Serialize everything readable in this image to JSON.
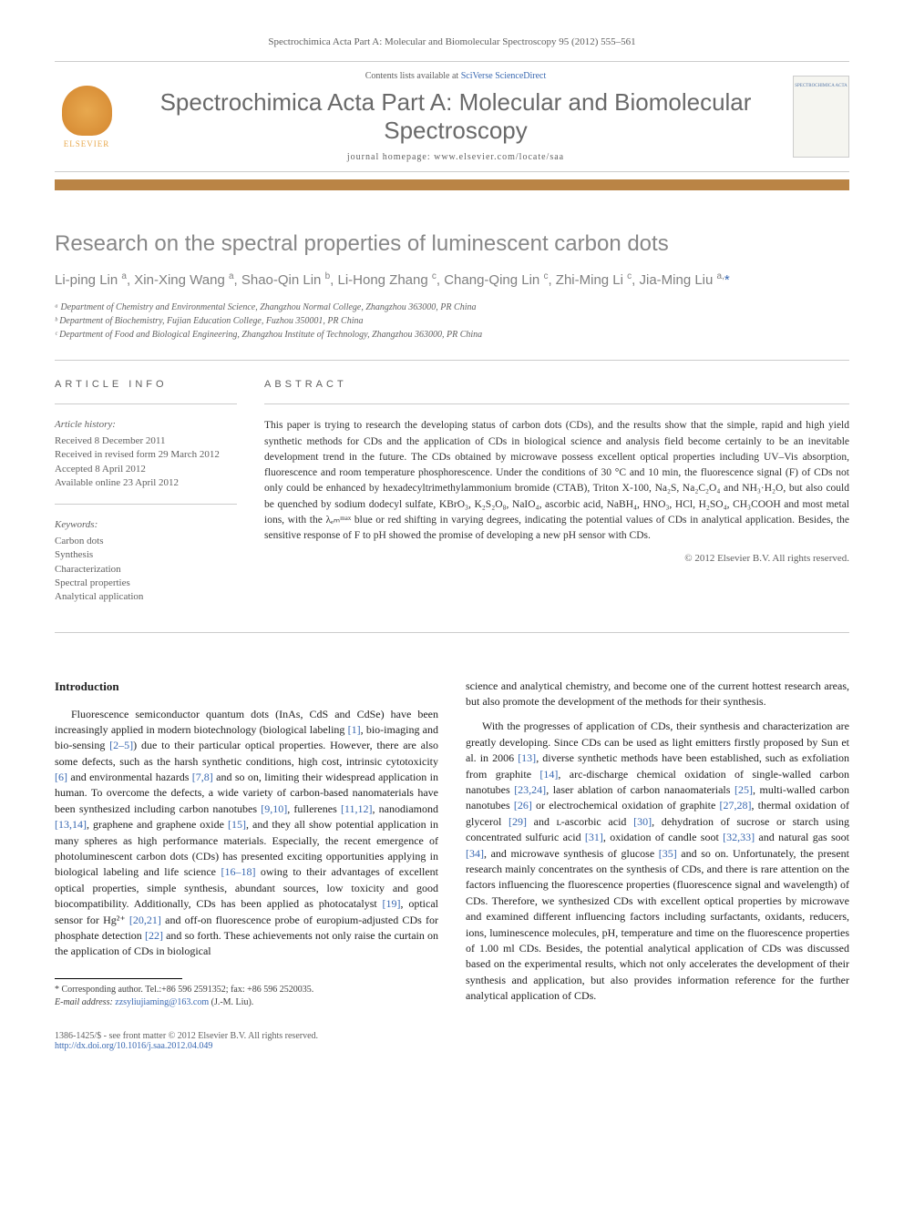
{
  "header": {
    "citation": "Spectrochimica Acta Part A: Molecular and Biomolecular Spectroscopy 95 (2012) 555–561",
    "contents_prefix": "Contents lists available at ",
    "contents_link": "SciVerse ScienceDirect",
    "journal_name": "Spectrochimica Acta Part A: Molecular and Biomolecular Spectroscopy",
    "homepage_prefix": "journal homepage: ",
    "homepage": "www.elsevier.com/locate/saa",
    "elsevier_label": "ELSEVIER",
    "cover_text": "SPECTROCHIMICA ACTA"
  },
  "article": {
    "title": "Research on the spectral properties of luminescent carbon dots",
    "authors_html": "Li-ping Lin <sup>a</sup>, Xin-Xing Wang <sup>a</sup>, Shao-Qin Lin <sup>b</sup>, Li-Hong Zhang <sup>c</sup>, Chang-Qing Lin <sup>c</sup>, Zhi-Ming Li <sup>c</sup>, Jia-Ming Liu <sup>a,</sup>",
    "affiliations": [
      "ᵃ Department of Chemistry and Environmental Science, Zhangzhou Normal College, Zhangzhou 363000, PR China",
      "ᵇ Department of Biochemistry, Fujian Education College, Fuzhou 350001, PR China",
      "ᶜ Department of Food and Biological Engineering, Zhangzhou Institute of Technology, Zhangzhou 363000, PR China"
    ]
  },
  "info": {
    "label": "ARTICLE INFO",
    "history_heading": "Article history:",
    "history": [
      "Received 8 December 2011",
      "Received in revised form 29 March 2012",
      "Accepted 8 April 2012",
      "Available online 23 April 2012"
    ],
    "keywords_heading": "Keywords:",
    "keywords": [
      "Carbon dots",
      "Synthesis",
      "Characterization",
      "Spectral properties",
      "Analytical application"
    ]
  },
  "abstract": {
    "label": "ABSTRACT",
    "text": "This paper is trying to research the developing status of carbon dots (CDs), and the results show that the simple, rapid and high yield synthetic methods for CDs and the application of CDs in biological science and analysis field become certainly to be an inevitable development trend in the future. The CDs obtained by microwave possess excellent optical properties including UV–Vis absorption, fluorescence and room temperature phosphorescence. Under the conditions of 30 °C and 10 min, the fluorescence signal (F) of CDs not only could be enhanced by hexadecyltrimethylammonium bromide (CTAB), Triton X-100, Na₂S, Na₂C₂O₄ and NH₃·H₂O, but also could be quenched by sodium dodecyl sulfate, KBrO₃, K₂S₂O₈, NaIO₄, ascorbic acid, NaBH₄, HNO₃, HCl, H₂SO₄, CH₃COOH and most metal ions, with the λₑₘᵐᵃˣ blue or red shifting in varying degrees, indicating the potential values of CDs in analytical application. Besides, the sensitive response of F to pH showed the promise of developing a new pH sensor with CDs.",
    "copyright": "© 2012 Elsevier B.V. All rights reserved."
  },
  "body": {
    "intro_heading": "Introduction",
    "left_paras": [
      "Fluorescence semiconductor quantum dots (InAs, CdS and CdSe) have been increasingly applied in modern biotechnology (biological labeling [1], bio-imaging and bio-sensing [2–5]) due to their particular optical properties. However, there are also some defects, such as the harsh synthetic conditions, high cost, intrinsic cytotoxicity [6] and environmental hazards [7,8] and so on, limiting their widespread application in human. To overcome the defects, a wide variety of carbon-based nanomaterials have been synthesized including carbon nanotubes [9,10], fullerenes [11,12], nanodiamond [13,14], graphene and graphene oxide [15], and they all show potential application in many spheres as high performance materials. Especially, the recent emergence of photoluminescent carbon dots (CDs) has presented exciting opportunities applying in biological labeling and life science [16–18] owing to their advantages of excellent optical properties, simple synthesis, abundant sources, low toxicity and good biocompatibility. Additionally, CDs has been applied as photocatalyst [19], optical sensor for Hg²⁺ [20,21] and off-on fluorescence probe of europium-adjusted CDs for phosphate detection [22] and so forth. These achievements not only raise the curtain on the application of CDs in biological"
    ],
    "right_paras": [
      "science and analytical chemistry, and become one of the current hottest research areas, but also promote the development of the methods for their synthesis.",
      "With the progresses of application of CDs, their synthesis and characterization are greatly developing. Since CDs can be used as light emitters firstly proposed by Sun et al. in 2006 [13], diverse synthetic methods have been established, such as exfoliation from graphite [14], arc-discharge chemical oxidation of single-walled carbon nanotubes [23,24], laser ablation of carbon nanaomaterials [25], multi-walled carbon nanotubes [26] or electrochemical oxidation of graphite [27,28], thermal oxidation of glycerol [29] and ʟ-ascorbic acid [30], dehydration of sucrose or starch using concentrated sulfuric acid [31], oxidation of candle soot [32,33] and natural gas soot [34], and microwave synthesis of glucose [35] and so on. Unfortunately, the present research mainly concentrates on the synthesis of CDs, and there is rare attention on the factors influencing the fluorescence properties (fluorescence signal and wavelength) of CDs. Therefore, we synthesized CDs with excellent optical properties by microwave and examined different influencing factors including surfactants, oxidants, reducers, ions, luminescence molecules, pH, temperature and time on the fluorescence properties of 1.00 ml CDs. Besides, the potential analytical application of CDs was discussed based on the experimental results, which not only accelerates the development of their synthesis and application, but also provides information reference for the further analytical application of CDs."
    ],
    "ref_ranges": [
      "[1]",
      "[2–5]",
      "[6]",
      "[7,8]",
      "[9,10]",
      "[11,12]",
      "[13,14]",
      "[15]",
      "[16–18]",
      "[19]",
      "[20,21]",
      "[22]",
      "[13]",
      "[14]",
      "[23,24]",
      "[25]",
      "[26]",
      "[27,28]",
      "[29]",
      "[30]",
      "[31]",
      "[32,33]",
      "[34]",
      "[35]"
    ]
  },
  "footnote": {
    "corr": "* Corresponding author. Tel.:+86 596 2591352; fax: +86 596 2520035.",
    "email_label": "E-mail address: ",
    "email": "zzsyliujiaming@163.com",
    "email_who": " (J.-M. Liu)."
  },
  "footer": {
    "line1": "1386-1425/$ - see front matter © 2012 Elsevier B.V. All rights reserved.",
    "doi_label": "",
    "doi": "http://dx.doi.org/10.1016/j.saa.2012.04.049"
  },
  "colors": {
    "accent_bar": "#ba8445",
    "link": "#3968b1",
    "gray_text": "#606060",
    "title_gray": "#878787",
    "author_gray": "#808080",
    "journal_gray": "#696969"
  }
}
